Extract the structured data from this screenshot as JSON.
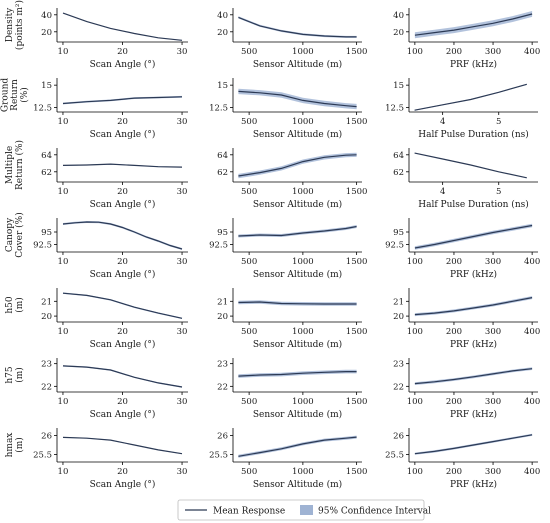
{
  "chart_data": {
    "type": "line",
    "legend": {
      "placement": "bottom-center",
      "entries": [
        {
          "label": "Mean Response",
          "kind": "line"
        },
        {
          "label": "95% Confidence Interval",
          "kind": "band"
        }
      ]
    },
    "colors": {
      "line": "#2c3a55",
      "band": "#9fb3d3"
    },
    "grid": false,
    "rows": [
      {
        "ylabel": [
          "Density",
          "(points m²)"
        ],
        "panels": [
          {
            "xlabel": "Scan Angle (°)",
            "xlim": [
              9,
              31
            ],
            "xticks": [
              10,
              20,
              30
            ],
            "ylim": [
              8,
              48
            ],
            "yticks": [
              20,
              40
            ],
            "series": [
              {
                "x": [
                  10,
                  14,
                  18,
                  22,
                  26,
                  30
                ],
                "y": [
                  42,
                  32,
                  24,
                  18,
                  13,
                  10
                ],
                "ci": 0.3
              }
            ]
          },
          {
            "xlabel": "Sensor Altitude (m)",
            "xlim": [
              350,
              1550
            ],
            "xticks": [
              500,
              1000,
              1500
            ],
            "ylim": [
              8,
              48
            ],
            "yticks": [
              20,
              40
            ],
            "series": [
              {
                "x": [
                  400,
                  600,
                  800,
                  1000,
                  1200,
                  1400,
                  1500
                ],
                "y": [
                  37,
                  27,
                  21,
                  17,
                  15,
                  14,
                  14
                ],
                "ci": 1.2
              }
            ]
          },
          {
            "xlabel": "PRF (kHz)",
            "xlim": [
              85,
              415
            ],
            "xticks": [
              100,
              200,
              300,
              400
            ],
            "ylim": [
              8,
              48
            ],
            "yticks": [
              20,
              40
            ],
            "series": [
              {
                "x": [
                  100,
                  150,
                  200,
                  250,
                  300,
                  350,
                  400
                ],
                "y": [
                  16,
                  19,
                  22,
                  26,
                  30,
                  35,
                  41
                ],
                "ci": 3.5
              }
            ]
          }
        ]
      },
      {
        "ylabel": [
          "Ground",
          "Return",
          "(%)"
        ],
        "panels": [
          {
            "xlabel": "Scan Angle (°)",
            "xlim": [
              9,
              31
            ],
            "xticks": [
              10,
              20,
              30
            ],
            "ylim": [
              12.0,
              15.8
            ],
            "yticks": [
              12.5,
              15.0
            ],
            "series": [
              {
                "x": [
                  10,
                  14,
                  18,
                  22,
                  26,
                  30
                ],
                "y": [
                  12.95,
                  13.15,
                  13.3,
                  13.55,
                  13.62,
                  13.7
                ],
                "ci": 0.1
              }
            ]
          },
          {
            "xlabel": "Sensor Altitude (m)",
            "xlim": [
              350,
              1550
            ],
            "xticks": [
              500,
              1000,
              1500
            ],
            "ylim": [
              12.0,
              15.8
            ],
            "yticks": [
              12.5,
              15.0
            ],
            "series": [
              {
                "x": [
                  400,
                  600,
                  800,
                  1000,
                  1200,
                  1400,
                  1500
                ],
                "y": [
                  14.3,
                  14.15,
                  13.9,
                  13.3,
                  12.95,
                  12.7,
                  12.6
                ],
                "ci": 0.3
              }
            ]
          },
          {
            "xlabel": "Half Pulse Duration (ns)",
            "xlim": [
              3.4,
              5.7
            ],
            "xticks": [
              4,
              5
            ],
            "ylim": [
              12.0,
              15.8
            ],
            "yticks": [
              12.5,
              15.0
            ],
            "series": [
              {
                "x": [
                  3.5,
                  4.0,
                  4.5,
                  5.0,
                  5.5
                ],
                "y": [
                  12.2,
                  12.8,
                  13.4,
                  14.2,
                  15.1
                ],
                "ci": 0.05
              }
            ]
          }
        ]
      },
      {
        "ylabel": [
          "Multiple",
          "Return (%)"
        ],
        "panels": [
          {
            "xlabel": "Scan Angle (°)",
            "xlim": [
              9,
              31
            ],
            "xticks": [
              10,
              20,
              30
            ],
            "ylim": [
              60.8,
              64.8
            ],
            "yticks": [
              62,
              64
            ],
            "series": [
              {
                "x": [
                  10,
                  14,
                  18,
                  22,
                  26,
                  30
                ],
                "y": [
                  62.75,
                  62.8,
                  62.9,
                  62.75,
                  62.6,
                  62.55
                ],
                "ci": 0.05
              }
            ]
          },
          {
            "xlabel": "Sensor Altitude (m)",
            "xlim": [
              350,
              1550
            ],
            "xticks": [
              500,
              1000,
              1500
            ],
            "ylim": [
              60.8,
              64.8
            ],
            "yticks": [
              62,
              64
            ],
            "series": [
              {
                "x": [
                  400,
                  600,
                  800,
                  1000,
                  1200,
                  1400,
                  1500
                ],
                "y": [
                  61.5,
                  61.9,
                  62.4,
                  63.2,
                  63.7,
                  63.95,
                  64.0
                ],
                "ci": 0.25
              }
            ]
          },
          {
            "xlabel": "Half Pulse Duration (ns)",
            "xlim": [
              3.4,
              5.7
            ],
            "xticks": [
              4,
              5
            ],
            "ylim": [
              60.8,
              64.8
            ],
            "yticks": [
              62,
              64
            ],
            "series": [
              {
                "x": [
                  3.5,
                  4.0,
                  4.5,
                  5.0,
                  5.5
                ],
                "y": [
                  64.2,
                  63.5,
                  62.8,
                  62.0,
                  61.3
                ],
                "ci": 0.03
              }
            ]
          }
        ]
      },
      {
        "ylabel": [
          "Canopy",
          "Cover (%)"
        ],
        "panels": [
          {
            "xlabel": "Scan Angle (°)",
            "xlim": [
              9,
              31
            ],
            "xticks": [
              10,
              20,
              30
            ],
            "ylim": [
              91.0,
              97.8
            ],
            "yticks": [
              92.5,
              95.0
            ],
            "series": [
              {
                "x": [
                  10,
                  12,
                  14,
                  16,
                  18,
                  20,
                  22,
                  24,
                  26,
                  28,
                  30
                ],
                "y": [
                  96.6,
                  96.85,
                  97.0,
                  96.95,
                  96.6,
                  95.9,
                  95.0,
                  94.0,
                  93.2,
                  92.3,
                  91.6
                ],
                "ci": 0.2
              }
            ]
          },
          {
            "xlabel": "Sensor Altitude (m)",
            "xlim": [
              350,
              1550
            ],
            "xticks": [
              500,
              1000,
              1500
            ],
            "ylim": [
              91.0,
              97.8
            ],
            "yticks": [
              92.5,
              95.0
            ],
            "series": [
              {
                "x": [
                  400,
                  600,
                  800,
                  1000,
                  1200,
                  1400,
                  1500
                ],
                "y": [
                  94.2,
                  94.4,
                  94.3,
                  94.8,
                  95.2,
                  95.7,
                  96.1
                ],
                "ci": 0.3
              }
            ]
          },
          {
            "xlabel": "PRF (kHz)",
            "xlim": [
              85,
              415
            ],
            "xticks": [
              100,
              200,
              300,
              400
            ],
            "ylim": [
              91.0,
              97.8
            ],
            "yticks": [
              92.5,
              95.0
            ],
            "series": [
              {
                "x": [
                  100,
                  150,
                  200,
                  250,
                  300,
                  350,
                  400
                ],
                "y": [
                  91.8,
                  92.5,
                  93.3,
                  94.1,
                  94.9,
                  95.6,
                  96.3
                ],
                "ci": 0.35
              }
            ]
          }
        ]
      },
      {
        "ylabel": [
          "h50",
          "(m)"
        ],
        "panels": [
          {
            "xlabel": "Scan Angle (°)",
            "xlim": [
              9,
              31
            ],
            "xticks": [
              10,
              20,
              30
            ],
            "ylim": [
              19.6,
              21.9
            ],
            "yticks": [
              20,
              21
            ],
            "series": [
              {
                "x": [
                  10,
                  14,
                  18,
                  22,
                  26,
                  30
                ],
                "y": [
                  21.55,
                  21.4,
                  21.1,
                  20.6,
                  20.2,
                  19.85
                ],
                "ci": 0.05
              }
            ]
          },
          {
            "xlabel": "Sensor Altitude (m)",
            "xlim": [
              350,
              1550
            ],
            "xticks": [
              500,
              1000,
              1500
            ],
            "ylim": [
              19.6,
              21.9
            ],
            "yticks": [
              20,
              21
            ],
            "series": [
              {
                "x": [
                  400,
                  600,
                  800,
                  1000,
                  1200,
                  1400,
                  1500
                ],
                "y": [
                  20.92,
                  20.95,
                  20.85,
                  20.83,
                  20.82,
                  20.82,
                  20.82
                ],
                "ci": 0.12
              }
            ]
          },
          {
            "xlabel": "PRF (kHz)",
            "xlim": [
              85,
              415
            ],
            "xticks": [
              100,
              200,
              300,
              400
            ],
            "ylim": [
              19.6,
              21.9
            ],
            "yticks": [
              20,
              21
            ],
            "series": [
              {
                "x": [
                  100,
                  150,
                  200,
                  250,
                  300,
                  350,
                  400
                ],
                "y": [
                  20.1,
                  20.2,
                  20.35,
                  20.55,
                  20.75,
                  21.0,
                  21.25
                ],
                "ci": 0.1
              }
            ]
          }
        ]
      },
      {
        "ylabel": [
          "h75",
          "(m)"
        ],
        "panels": [
          {
            "xlabel": "Scan Angle (°)",
            "xlim": [
              9,
              31
            ],
            "xticks": [
              10,
              20,
              30
            ],
            "ylim": [
              21.75,
              23.25
            ],
            "yticks": [
              22,
              23
            ],
            "series": [
              {
                "x": [
                  10,
                  14,
                  18,
                  22,
                  26,
                  30
                ],
                "y": [
                  22.9,
                  22.85,
                  22.72,
                  22.4,
                  22.15,
                  21.97
                ],
                "ci": 0.03
              }
            ]
          },
          {
            "xlabel": "Sensor Altitude (m)",
            "xlim": [
              350,
              1550
            ],
            "xticks": [
              500,
              1000,
              1500
            ],
            "ylim": [
              21.75,
              23.25
            ],
            "yticks": [
              22,
              23
            ],
            "series": [
              {
                "x": [
                  400,
                  600,
                  800,
                  1000,
                  1200,
                  1400,
                  1500
                ],
                "y": [
                  22.45,
                  22.5,
                  22.52,
                  22.58,
                  22.62,
                  22.65,
                  22.65
                ],
                "ci": 0.08
              }
            ]
          },
          {
            "xlabel": "PRF (kHz)",
            "xlim": [
              85,
              415
            ],
            "xticks": [
              100,
              200,
              300,
              400
            ],
            "ylim": [
              21.75,
              23.25
            ],
            "yticks": [
              22,
              23
            ],
            "series": [
              {
                "x": [
                  100,
                  150,
                  200,
                  250,
                  300,
                  350,
                  400
                ],
                "y": [
                  22.12,
                  22.2,
                  22.3,
                  22.42,
                  22.55,
                  22.68,
                  22.78
                ],
                "ci": 0.06
              }
            ]
          }
        ]
      },
      {
        "ylabel": [
          "hmax",
          "(m)"
        ],
        "panels": [
          {
            "xlabel": "Scan Angle (°)",
            "xlim": [
              9,
              31
            ],
            "xticks": [
              10,
              20,
              30
            ],
            "ylim": [
              25.3,
              26.2
            ],
            "yticks": [
              25.5,
              26.0
            ],
            "series": [
              {
                "x": [
                  10,
                  14,
                  18,
                  22,
                  26,
                  30
                ],
                "y": [
                  25.95,
                  25.93,
                  25.88,
                  25.75,
                  25.62,
                  25.52
                ],
                "ci": 0.01
              }
            ]
          },
          {
            "xlabel": "Sensor Altitude (m)",
            "xlim": [
              350,
              1550
            ],
            "xticks": [
              500,
              1000,
              1500
            ],
            "ylim": [
              25.3,
              26.2
            ],
            "yticks": [
              25.5,
              26.0
            ],
            "series": [
              {
                "x": [
                  400,
                  600,
                  800,
                  1000,
                  1200,
                  1400,
                  1500
                ],
                "y": [
                  25.45,
                  25.55,
                  25.65,
                  25.78,
                  25.88,
                  25.93,
                  25.96
                ],
                "ci": 0.04
              }
            ]
          },
          {
            "xlabel": "PRF (kHz)",
            "xlim": [
              85,
              415
            ],
            "xticks": [
              100,
              200,
              300,
              400
            ],
            "ylim": [
              25.3,
              26.2
            ],
            "yticks": [
              25.5,
              26.0
            ],
            "series": [
              {
                "x": [
                  100,
                  150,
                  200,
                  250,
                  300,
                  350,
                  400
                ],
                "y": [
                  25.52,
                  25.58,
                  25.66,
                  25.75,
                  25.84,
                  25.93,
                  26.02
                ],
                "ci": 0.03
              }
            ]
          }
        ]
      }
    ]
  }
}
